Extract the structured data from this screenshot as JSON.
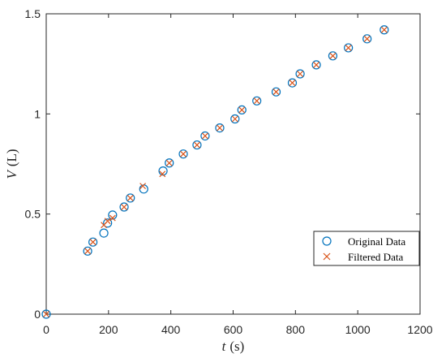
{
  "chart_data": {
    "type": "scatter",
    "title": "",
    "xlabel_var": "t",
    "xlabel_unit": "(s)",
    "ylabel_var": "V",
    "ylabel_unit": "(L)",
    "xlim": [
      0,
      1200
    ],
    "ylim": [
      0,
      1.5
    ],
    "xticks": [
      0,
      200,
      400,
      600,
      800,
      1000,
      1200
    ],
    "yticks": [
      0,
      0.5,
      1,
      1.5
    ],
    "xtick_labels": [
      "0",
      "200",
      "400",
      "600",
      "800",
      "1000",
      "1200"
    ],
    "ytick_labels": [
      "0",
      "0.5",
      "1",
      "1.5"
    ],
    "grid": false,
    "legend_position": "lower-right",
    "series": [
      {
        "name": "Original Data",
        "marker": "circle",
        "color": "#0072BD",
        "x": [
          0,
          133,
          150,
          185,
          197,
          213,
          250,
          270,
          313,
          375,
          395,
          440,
          484,
          510,
          557,
          606,
          628,
          676,
          738,
          790,
          815,
          867,
          920,
          970,
          1030,
          1085
        ],
        "y": [
          0,
          0.315,
          0.36,
          0.405,
          0.455,
          0.495,
          0.535,
          0.58,
          0.625,
          0.715,
          0.755,
          0.8,
          0.845,
          0.89,
          0.93,
          0.975,
          1.02,
          1.065,
          1.11,
          1.155,
          1.2,
          1.245,
          1.29,
          1.33,
          1.375,
          1.42
        ]
      },
      {
        "name": "Filtered Data",
        "marker": "x",
        "color": "#D95319",
        "x": [
          0,
          133,
          150,
          185,
          197,
          213,
          250,
          270,
          310,
          373,
          395,
          440,
          484,
          510,
          557,
          606,
          628,
          676,
          738,
          790,
          815,
          867,
          920,
          970,
          1030,
          1085
        ],
        "y": [
          0,
          0.315,
          0.36,
          0.445,
          0.465,
          0.48,
          0.535,
          0.58,
          0.64,
          0.7,
          0.755,
          0.8,
          0.845,
          0.89,
          0.93,
          0.975,
          1.02,
          1.065,
          1.11,
          1.155,
          1.2,
          1.245,
          1.29,
          1.33,
          1.375,
          1.42
        ]
      }
    ]
  }
}
